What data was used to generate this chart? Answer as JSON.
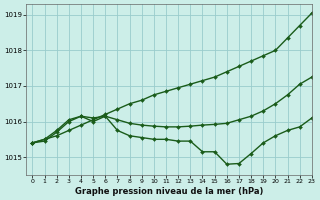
{
  "title": "Graphe pression niveau de la mer (hPa)",
  "background_color": "#cceee8",
  "grid_color": "#99cccc",
  "line_color": "#1a5c1a",
  "xlim": [
    -0.5,
    23
  ],
  "ylim": [
    1014.5,
    1019.3
  ],
  "yticks": [
    1015,
    1016,
    1017,
    1018,
    1019
  ],
  "xticks": [
    0,
    1,
    2,
    3,
    4,
    5,
    6,
    7,
    8,
    9,
    10,
    11,
    12,
    13,
    14,
    15,
    16,
    17,
    18,
    19,
    20,
    21,
    22,
    23
  ],
  "series": [
    {
      "x": [
        0,
        1,
        2,
        3,
        4,
        5,
        6,
        7,
        8,
        9,
        10,
        11,
        12,
        13,
        14,
        15,
        16,
        17,
        18,
        19,
        20,
        21,
        22,
        23
      ],
      "y": [
        1015.4,
        1015.5,
        1015.6,
        1015.75,
        1015.9,
        1016.05,
        1016.2,
        1016.35,
        1016.5,
        1016.6,
        1016.75,
        1016.85,
        1016.95,
        1017.05,
        1017.15,
        1017.25,
        1017.4,
        1017.55,
        1017.7,
        1017.85,
        1018.0,
        1018.35,
        1018.7,
        1019.05
      ],
      "marker": "D",
      "markersize": 2.0,
      "linewidth": 1.0
    },
    {
      "x": [
        0,
        1,
        2,
        3,
        4,
        5,
        6,
        7,
        8,
        9,
        10,
        11,
        12,
        13,
        14,
        15,
        16,
        17,
        18,
        19,
        20,
        21,
        22,
        23
      ],
      "y": [
        1015.4,
        1015.5,
        1015.75,
        1016.05,
        1016.15,
        1016.1,
        1016.15,
        1016.05,
        1015.95,
        1015.9,
        1015.87,
        1015.85,
        1015.85,
        1015.87,
        1015.9,
        1015.92,
        1015.95,
        1016.05,
        1016.15,
        1016.3,
        1016.5,
        1016.75,
        1017.05,
        1017.25
      ],
      "marker": "D",
      "markersize": 2.0,
      "linewidth": 1.0
    },
    {
      "x": [
        0,
        1,
        2,
        3,
        4,
        5,
        6,
        7,
        8,
        9,
        10,
        11,
        12,
        13,
        14,
        15,
        16,
        17,
        18,
        19,
        20,
        21,
        22,
        23
      ],
      "y": [
        1015.4,
        1015.45,
        1015.7,
        1016.0,
        1016.15,
        1016.0,
        1016.15,
        1015.75,
        1015.6,
        1015.55,
        1015.5,
        1015.5,
        1015.45,
        1015.45,
        1015.15,
        1015.15,
        1014.8,
        1014.82,
        1015.1,
        1015.4,
        1015.6,
        1015.75,
        1015.85,
        1016.1
      ],
      "marker": "D",
      "markersize": 2.0,
      "linewidth": 1.0
    }
  ]
}
